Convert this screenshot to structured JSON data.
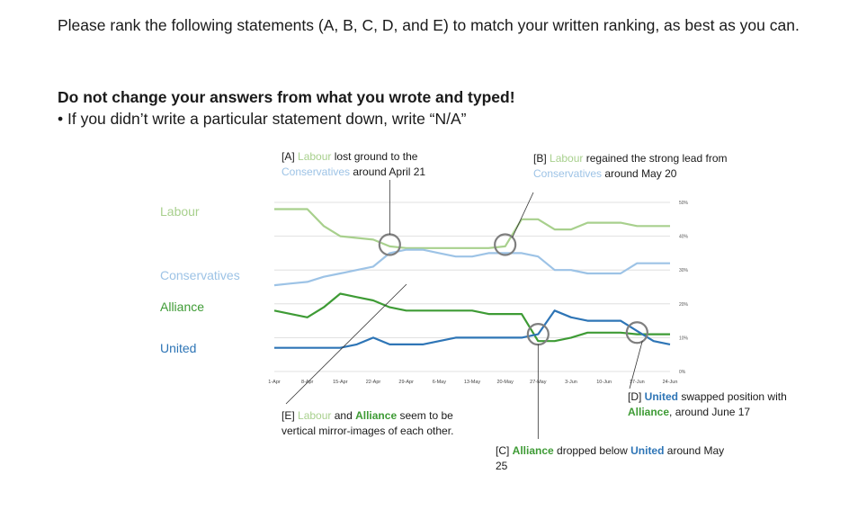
{
  "instructions": {
    "line1": "Please rank the following statements (A, B, C, D, and E) to match your written ranking, as best as you can.",
    "line2": "Do not change your answers from what you wrote and typed!",
    "line3": "• If you didn’t write a particular statement down, write “N/A”"
  },
  "annotations": {
    "a": {
      "prefix": "[A] ",
      "labour": "Labour",
      "mid": " lost ground to the",
      "conservatives": "Conservatives",
      "suffix": " around April 21"
    },
    "b": {
      "prefix": "[B] ",
      "labour": "Labour",
      "mid": " regained the strong lead from",
      "conservatives": "Conservatives",
      "suffix": "  around May 20"
    },
    "c": {
      "prefix": "[C] ",
      "alliance": "Alliance",
      "mid": " dropped below ",
      "united": "United",
      "suffix": "  around May 25"
    },
    "d": {
      "prefix": "[D] ",
      "united": "United",
      "mid": " swapped position with ",
      "alliance": "Alliance",
      "suffix": ", around June 17"
    },
    "e": {
      "prefix": "[E] ",
      "labour": "Labour",
      "mid": " and ",
      "alliance": "Alliance",
      "suffix": " seem to be vertical mirror-images of each other."
    }
  },
  "colors": {
    "labour": "#a8d08d",
    "conservatives": "#9dc3e6",
    "alliance": "#3e9b35",
    "united": "#2e75b6",
    "grid": "#d9d9d9",
    "marker": "#7f7f7f"
  },
  "chart_data": {
    "type": "line",
    "x": [
      "1-Apr",
      "4-Apr",
      "8-Apr",
      "11-Apr",
      "15-Apr",
      "18-Apr",
      "22-Apr",
      "25-Apr",
      "29-Apr",
      "2-May",
      "6-May",
      "9-May",
      "13-May",
      "16-May",
      "20-May",
      "23-May",
      "27-May",
      "30-May",
      "3-Jun",
      "6-Jun",
      "10-Jun",
      "13-Jun",
      "17-Jun",
      "20-Jun",
      "24-Jun"
    ],
    "xticks": [
      "1-Apr",
      "8-Apr",
      "15-Apr",
      "22-Apr",
      "29-Apr",
      "6-May",
      "13-May",
      "20-May",
      "27-May",
      "3-Jun",
      "10-Jun",
      "17-Jun",
      "24-Jun"
    ],
    "yticks": [
      "0%",
      "10%",
      "20%",
      "30%",
      "40%",
      "50%"
    ],
    "ylim": [
      0,
      50
    ],
    "grid": true,
    "series": [
      {
        "name": "Labour",
        "color": "#a8d08d",
        "values": [
          48,
          48,
          48,
          43,
          40,
          39.5,
          39,
          37,
          36.5,
          36.5,
          36.5,
          36.5,
          36.5,
          36.5,
          37,
          45,
          45,
          42,
          42,
          44,
          44,
          44,
          43,
          43,
          43
        ]
      },
      {
        "name": "Conservatives",
        "color": "#9dc3e6",
        "values": [
          25.5,
          26,
          26.5,
          28,
          29,
          30,
          31,
          35,
          36,
          36,
          35,
          34,
          34,
          35,
          35,
          35,
          34,
          30,
          30,
          29,
          29,
          29,
          32,
          32,
          32
        ]
      },
      {
        "name": "Alliance",
        "color": "#3e9b35",
        "values": [
          18,
          17,
          16,
          19,
          23,
          22,
          21,
          19,
          18,
          18,
          18,
          18,
          18,
          17,
          17,
          17,
          9,
          9,
          10,
          11.5,
          11.5,
          11.5,
          11,
          11,
          11
        ]
      },
      {
        "name": "United",
        "color": "#2e75b6",
        "values": [
          7,
          7,
          7,
          7,
          7,
          8,
          10,
          8,
          8,
          8,
          9,
          10,
          10,
          10,
          10,
          10,
          11,
          18,
          16,
          15,
          15,
          15,
          12,
          9,
          8
        ]
      }
    ]
  }
}
